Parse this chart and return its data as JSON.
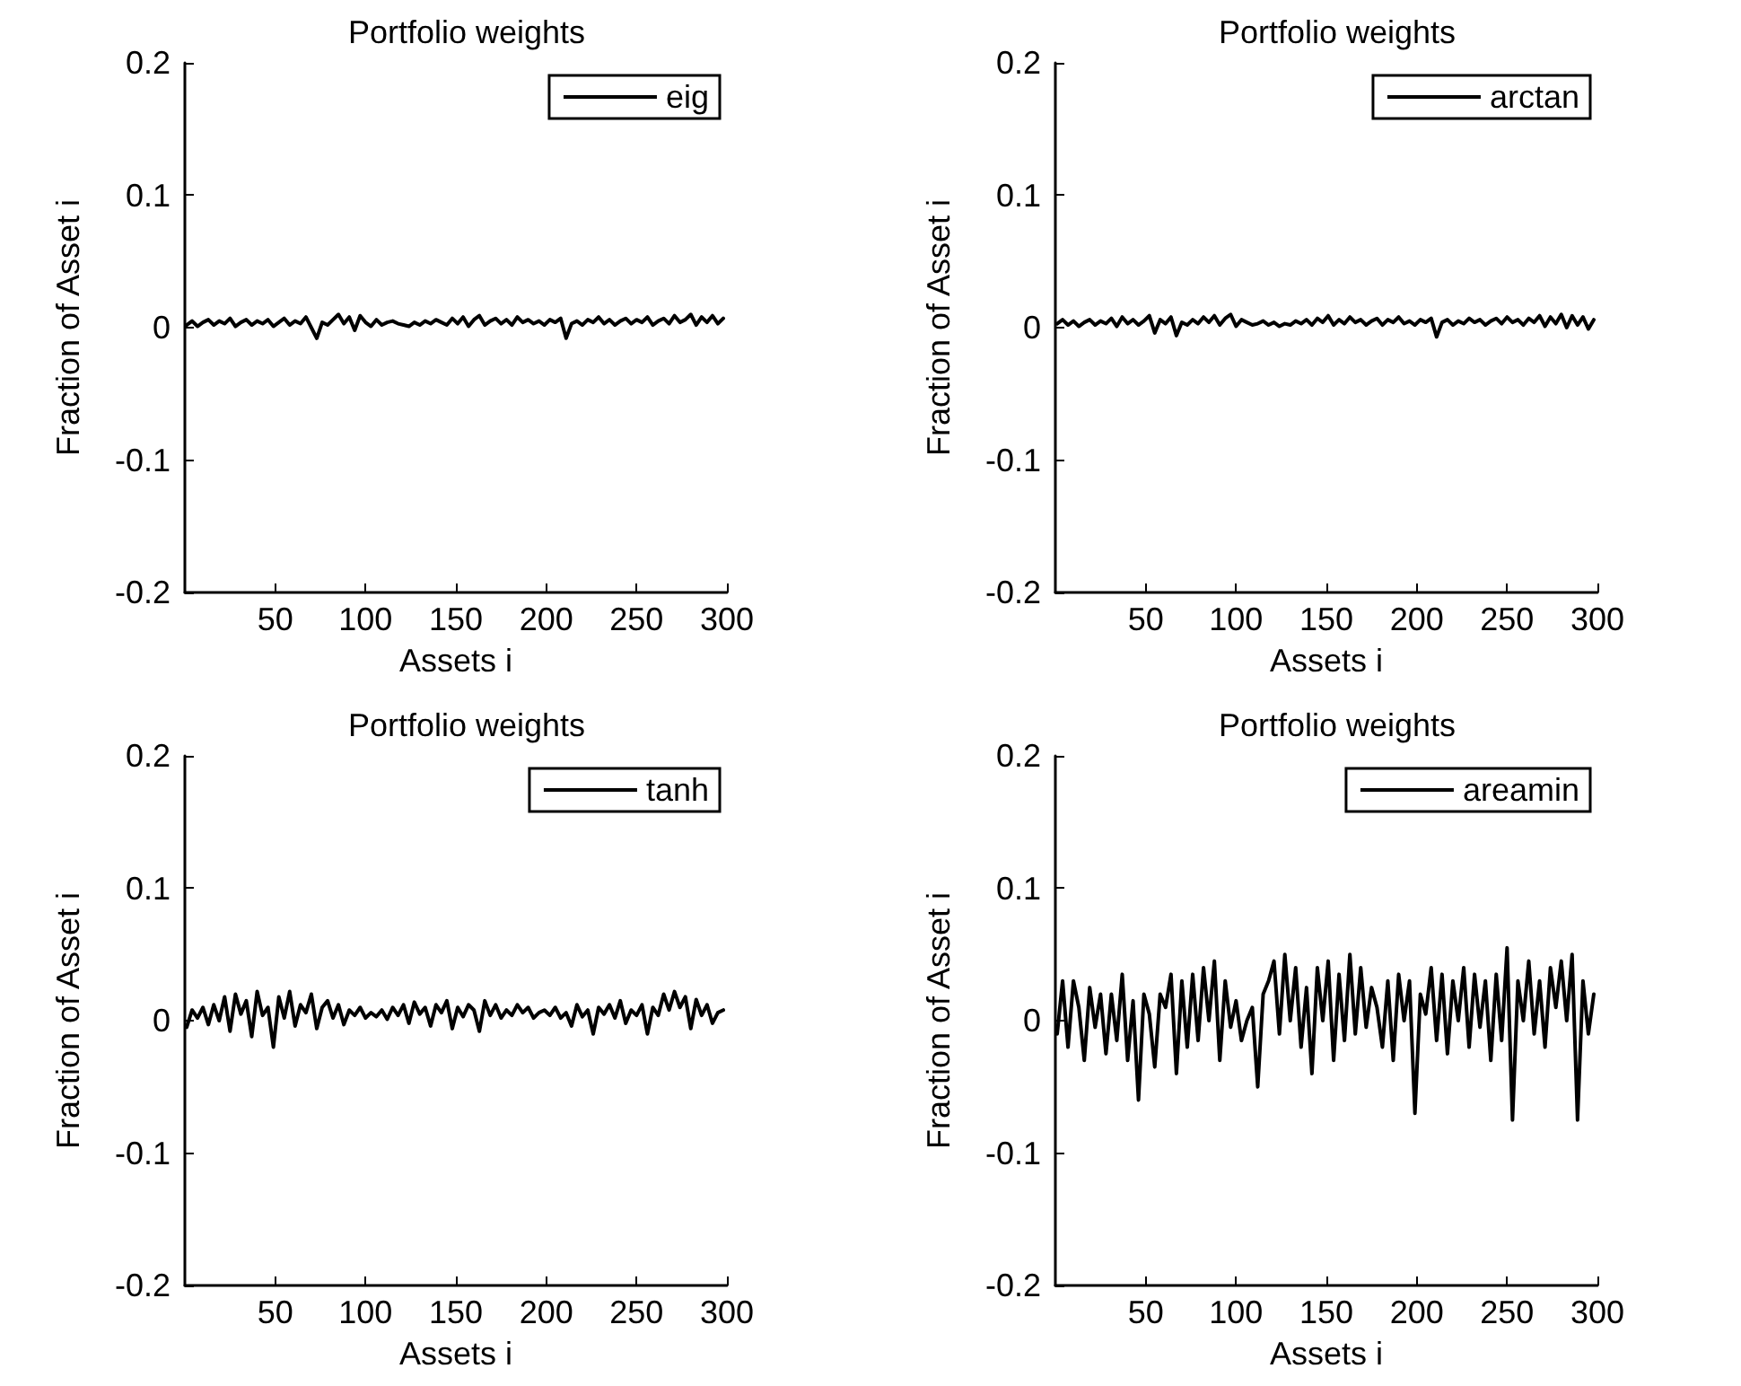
{
  "chart_data": [
    {
      "type": "line",
      "title": "Portfolio weights",
      "xlabel": "Assets i",
      "ylabel": "Fraction of Asset i",
      "xlim": [
        0,
        300
      ],
      "xticks": [
        50,
        100,
        150,
        200,
        250,
        300
      ],
      "ylim": [
        -0.2,
        0.2
      ],
      "yticks": [
        -0.2,
        -0.1,
        0,
        0.1,
        0.2
      ],
      "legend": "top right",
      "grid": false,
      "marker": "none",
      "line_style": "solid",
      "x": [
        1,
        4,
        7,
        10,
        13,
        16,
        19,
        22,
        25,
        28,
        31,
        34,
        37,
        40,
        43,
        46,
        49,
        52,
        55,
        58,
        61,
        64,
        67,
        70,
        73,
        76,
        79,
        82,
        85,
        88,
        91,
        94,
        97,
        100,
        103,
        106,
        109,
        112,
        115,
        118,
        121,
        124,
        127,
        130,
        133,
        136,
        139,
        142,
        145,
        148,
        151,
        154,
        157,
        160,
        163,
        166,
        169,
        172,
        175,
        178,
        181,
        184,
        187,
        190,
        193,
        196,
        199,
        202,
        205,
        208,
        211,
        214,
        217,
        220,
        223,
        226,
        229,
        232,
        235,
        238,
        241,
        244,
        247,
        250,
        253,
        256,
        259,
        262,
        265,
        268,
        271,
        274,
        277,
        280,
        283,
        286,
        289,
        292,
        295,
        298
      ],
      "series": [
        {
          "name": "eig",
          "color": "#000000",
          "values": [
            0.002,
            0.005,
            0.001,
            0.004,
            0.006,
            0.002,
            0.005,
            0.003,
            0.007,
            0.001,
            0.004,
            0.006,
            0.002,
            0.005,
            0.003,
            0.006,
            0.001,
            0.004,
            0.007,
            0.002,
            0.005,
            0.003,
            0.008,
            0.0,
            -0.008,
            0.004,
            0.002,
            0.006,
            0.01,
            0.003,
            0.008,
            -0.002,
            0.009,
            0.004,
            0.001,
            0.006,
            0.002,
            0.004,
            0.005,
            0.003,
            0.002,
            0.001,
            0.004,
            0.002,
            0.005,
            0.003,
            0.006,
            0.004,
            0.002,
            0.007,
            0.003,
            0.008,
            0.001,
            0.006,
            0.009,
            0.002,
            0.005,
            0.007,
            0.003,
            0.006,
            0.002,
            0.008,
            0.004,
            0.006,
            0.003,
            0.005,
            0.002,
            0.006,
            0.004,
            0.007,
            -0.008,
            0.003,
            0.005,
            0.002,
            0.006,
            0.004,
            0.008,
            0.003,
            0.006,
            0.002,
            0.005,
            0.007,
            0.003,
            0.006,
            0.004,
            0.008,
            0.002,
            0.005,
            0.007,
            0.003,
            0.009,
            0.004,
            0.006,
            0.01,
            0.002,
            0.008,
            0.004,
            0.009,
            0.003,
            0.007
          ]
        }
      ]
    },
    {
      "type": "line",
      "title": "Portfolio weights",
      "xlabel": "Assets i",
      "ylabel": "Fraction of Asset i",
      "xlim": [
        0,
        300
      ],
      "xticks": [
        50,
        100,
        150,
        200,
        250,
        300
      ],
      "ylim": [
        -0.2,
        0.2
      ],
      "yticks": [
        -0.2,
        -0.1,
        0,
        0.1,
        0.2
      ],
      "legend": "top right",
      "grid": false,
      "marker": "none",
      "line_style": "solid",
      "x": [
        1,
        4,
        7,
        10,
        13,
        16,
        19,
        22,
        25,
        28,
        31,
        34,
        37,
        40,
        43,
        46,
        49,
        52,
        55,
        58,
        61,
        64,
        67,
        70,
        73,
        76,
        79,
        82,
        85,
        88,
        91,
        94,
        97,
        100,
        103,
        106,
        109,
        112,
        115,
        118,
        121,
        124,
        127,
        130,
        133,
        136,
        139,
        142,
        145,
        148,
        151,
        154,
        157,
        160,
        163,
        166,
        169,
        172,
        175,
        178,
        181,
        184,
        187,
        190,
        193,
        196,
        199,
        202,
        205,
        208,
        211,
        214,
        217,
        220,
        223,
        226,
        229,
        232,
        235,
        238,
        241,
        244,
        247,
        250,
        253,
        256,
        259,
        262,
        265,
        268,
        271,
        274,
        277,
        280,
        283,
        286,
        289,
        292,
        295,
        298
      ],
      "series": [
        {
          "name": "arctan",
          "color": "#000000",
          "values": [
            0.003,
            0.006,
            0.002,
            0.005,
            0.001,
            0.004,
            0.006,
            0.002,
            0.005,
            0.003,
            0.007,
            0.001,
            0.008,
            0.003,
            0.006,
            0.002,
            0.005,
            0.009,
            -0.004,
            0.006,
            0.003,
            0.008,
            -0.006,
            0.004,
            0.002,
            0.006,
            0.003,
            0.008,
            0.004,
            0.009,
            0.002,
            0.007,
            0.01,
            0.001,
            0.006,
            0.004,
            0.002,
            0.003,
            0.005,
            0.002,
            0.004,
            0.001,
            0.003,
            0.002,
            0.005,
            0.003,
            0.006,
            0.002,
            0.007,
            0.004,
            0.009,
            0.002,
            0.006,
            0.003,
            0.008,
            0.004,
            0.006,
            0.002,
            0.005,
            0.007,
            0.002,
            0.006,
            0.004,
            0.008,
            0.003,
            0.005,
            0.002,
            0.006,
            0.004,
            0.007,
            -0.007,
            0.004,
            0.006,
            0.002,
            0.005,
            0.003,
            0.007,
            0.004,
            0.006,
            0.002,
            0.005,
            0.007,
            0.003,
            0.008,
            0.004,
            0.006,
            0.002,
            0.007,
            0.004,
            0.009,
            0.001,
            0.008,
            0.003,
            0.01,
            0.0,
            0.009,
            0.002,
            0.008,
            -0.001,
            0.006
          ]
        }
      ]
    },
    {
      "type": "line",
      "title": "Portfolio weights",
      "xlabel": "Assets i",
      "ylabel": "Fraction of Asset i",
      "xlim": [
        0,
        300
      ],
      "xticks": [
        50,
        100,
        150,
        200,
        250,
        300
      ],
      "ylim": [
        -0.2,
        0.2
      ],
      "yticks": [
        -0.2,
        -0.1,
        0,
        0.1,
        0.2
      ],
      "legend": "top right",
      "grid": false,
      "marker": "none",
      "line_style": "solid",
      "x": [
        1,
        4,
        7,
        10,
        13,
        16,
        19,
        22,
        25,
        28,
        31,
        34,
        37,
        40,
        43,
        46,
        49,
        52,
        55,
        58,
        61,
        64,
        67,
        70,
        73,
        76,
        79,
        82,
        85,
        88,
        91,
        94,
        97,
        100,
        103,
        106,
        109,
        112,
        115,
        118,
        121,
        124,
        127,
        130,
        133,
        136,
        139,
        142,
        145,
        148,
        151,
        154,
        157,
        160,
        163,
        166,
        169,
        172,
        175,
        178,
        181,
        184,
        187,
        190,
        193,
        196,
        199,
        202,
        205,
        208,
        211,
        214,
        217,
        220,
        223,
        226,
        229,
        232,
        235,
        238,
        241,
        244,
        247,
        250,
        253,
        256,
        259,
        262,
        265,
        268,
        271,
        274,
        277,
        280,
        283,
        286,
        289,
        292,
        295,
        298
      ],
      "series": [
        {
          "name": "tanh",
          "color": "#000000",
          "values": [
            -0.005,
            0.008,
            0.002,
            0.01,
            -0.003,
            0.012,
            0.0,
            0.018,
            -0.008,
            0.02,
            0.005,
            0.015,
            -0.012,
            0.022,
            0.004,
            0.01,
            -0.02,
            0.018,
            0.002,
            0.022,
            -0.004,
            0.012,
            0.006,
            0.02,
            -0.006,
            0.01,
            0.015,
            0.002,
            0.012,
            -0.003,
            0.008,
            0.004,
            0.01,
            0.002,
            0.006,
            0.003,
            0.008,
            0.001,
            0.01,
            0.004,
            0.012,
            -0.002,
            0.014,
            0.005,
            0.01,
            -0.004,
            0.012,
            0.006,
            0.015,
            -0.006,
            0.01,
            0.003,
            0.012,
            0.008,
            -0.008,
            0.015,
            0.004,
            0.012,
            0.002,
            0.008,
            0.004,
            0.012,
            0.006,
            0.01,
            0.002,
            0.006,
            0.008,
            0.004,
            0.01,
            0.002,
            0.006,
            -0.004,
            0.012,
            0.003,
            0.008,
            -0.01,
            0.01,
            0.005,
            0.012,
            0.002,
            0.015,
            -0.002,
            0.008,
            0.004,
            0.012,
            -0.01,
            0.01,
            0.004,
            0.02,
            0.008,
            0.022,
            0.01,
            0.018,
            -0.006,
            0.016,
            0.004,
            0.012,
            -0.002,
            0.006,
            0.008
          ]
        }
      ]
    },
    {
      "type": "line",
      "title": "Portfolio weights",
      "xlabel": "Assets i",
      "ylabel": "Fraction of Asset i",
      "xlim": [
        0,
        300
      ],
      "xticks": [
        50,
        100,
        150,
        200,
        250,
        300
      ],
      "ylim": [
        -0.2,
        0.2
      ],
      "yticks": [
        -0.2,
        -0.1,
        0,
        0.1,
        0.2
      ],
      "legend": "top right",
      "grid": false,
      "marker": "none",
      "line_style": "solid",
      "x": [
        1,
        4,
        7,
        10,
        13,
        16,
        19,
        22,
        25,
        28,
        31,
        34,
        37,
        40,
        43,
        46,
        49,
        52,
        55,
        58,
        61,
        64,
        67,
        70,
        73,
        76,
        79,
        82,
        85,
        88,
        91,
        94,
        97,
        100,
        103,
        106,
        109,
        112,
        115,
        118,
        121,
        124,
        127,
        130,
        133,
        136,
        139,
        142,
        145,
        148,
        151,
        154,
        157,
        160,
        163,
        166,
        169,
        172,
        175,
        178,
        181,
        184,
        187,
        190,
        193,
        196,
        199,
        202,
        205,
        208,
        211,
        214,
        217,
        220,
        223,
        226,
        229,
        232,
        235,
        238,
        241,
        244,
        247,
        250,
        253,
        256,
        259,
        262,
        265,
        268,
        271,
        274,
        277,
        280,
        283,
        286,
        289,
        292,
        295,
        298
      ],
      "series": [
        {
          "name": "areamin",
          "color": "#000000",
          "values": [
            -0.01,
            0.03,
            -0.02,
            0.03,
            0.01,
            -0.03,
            0.025,
            -0.005,
            0.02,
            -0.025,
            0.02,
            -0.015,
            0.035,
            -0.03,
            0.015,
            -0.06,
            0.02,
            0.005,
            -0.035,
            0.02,
            0.01,
            0.035,
            -0.04,
            0.03,
            -0.02,
            0.035,
            -0.015,
            0.04,
            0.0,
            0.045,
            -0.03,
            0.03,
            -0.005,
            0.015,
            -0.015,
            0.0,
            0.01,
            -0.05,
            0.02,
            0.03,
            0.045,
            -0.01,
            0.05,
            0.0,
            0.04,
            -0.02,
            0.025,
            -0.04,
            0.04,
            0.0,
            0.045,
            -0.03,
            0.035,
            -0.015,
            0.05,
            -0.01,
            0.04,
            -0.005,
            0.025,
            0.01,
            -0.02,
            0.03,
            -0.03,
            0.035,
            0.0,
            0.03,
            -0.07,
            0.02,
            0.005,
            0.04,
            -0.015,
            0.035,
            -0.025,
            0.03,
            0.0,
            0.04,
            -0.02,
            0.035,
            -0.005,
            0.03,
            -0.03,
            0.035,
            -0.015,
            0.055,
            -0.075,
            0.03,
            0.0,
            0.045,
            -0.01,
            0.03,
            -0.02,
            0.04,
            0.01,
            0.045,
            0.0,
            0.05,
            -0.075,
            0.03,
            -0.01,
            0.02
          ]
        }
      ]
    }
  ]
}
